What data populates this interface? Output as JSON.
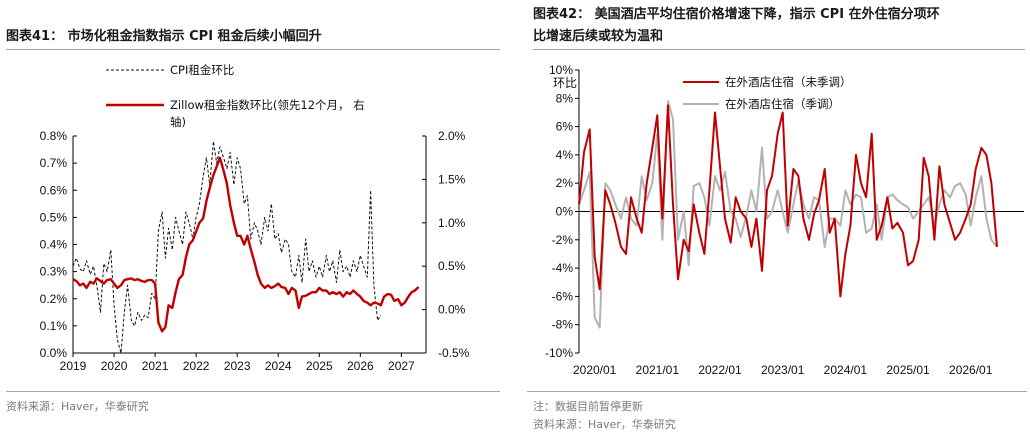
{
  "left": {
    "title": "图表41： 市场化租金指数指示 CPI 租金后续小幅回升",
    "source": "资料来源：Haver，华泰研究",
    "chart_data": {
      "type": "line",
      "x_ticks": [
        "2019",
        "2020",
        "2021",
        "2022",
        "2023",
        "2024",
        "2025",
        "2026",
        "2027"
      ],
      "x_range": [
        2019.0,
        2027.6
      ],
      "y_left": {
        "range": [
          0.0,
          0.8
        ],
        "ticks": [
          0.0,
          0.1,
          0.2,
          0.3,
          0.4,
          0.5,
          0.6,
          0.7,
          0.8
        ],
        "tick_labels": [
          "0.0%",
          "0.1%",
          "0.2%",
          "0.3%",
          "0.4%",
          "0.5%",
          "0.6%",
          "0.7%",
          "0.8%"
        ]
      },
      "y_right": {
        "range": [
          -0.5,
          2.0
        ],
        "ticks": [
          -0.5,
          0.0,
          0.5,
          1.0,
          1.5,
          2.0
        ],
        "tick_labels": [
          "-0.5%",
          "0.0%",
          "0.5%",
          "1.0%",
          "1.5%",
          "2.0%"
        ]
      },
      "grid": false,
      "legend_position": "top-left",
      "series": [
        {
          "name": "CPI租金环比",
          "axis": "left",
          "style": "dashed",
          "color": "#111111",
          "x": [
            2019.0,
            2019.08,
            2019.17,
            2019.25,
            2019.33,
            2019.42,
            2019.5,
            2019.58,
            2019.67,
            2019.75,
            2019.83,
            2019.92,
            2020.0,
            2020.08,
            2020.17,
            2020.25,
            2020.33,
            2020.42,
            2020.5,
            2020.58,
            2020.67,
            2020.75,
            2020.83,
            2020.92,
            2021.0,
            2021.08,
            2021.17,
            2021.25,
            2021.33,
            2021.42,
            2021.5,
            2021.58,
            2021.67,
            2021.75,
            2021.83,
            2021.92,
            2022.0,
            2022.08,
            2022.17,
            2022.25,
            2022.33,
            2022.42,
            2022.5,
            2022.58,
            2022.67,
            2022.75,
            2022.83,
            2022.92,
            2023.0,
            2023.08,
            2023.17,
            2023.25,
            2023.33,
            2023.42,
            2023.5,
            2023.58,
            2023.67,
            2023.75,
            2023.83,
            2023.92,
            2024.0,
            2024.08,
            2024.17,
            2024.25,
            2024.33,
            2024.42,
            2024.5,
            2024.58,
            2024.67,
            2024.75,
            2024.83,
            2024.92,
            2025.0,
            2025.08,
            2025.17,
            2025.25,
            2025.33,
            2025.42,
            2025.5,
            2025.58,
            2025.67,
            2025.75,
            2025.83,
            2025.92,
            2026.0,
            2026.08,
            2026.17,
            2026.25,
            2026.33,
            2026.42,
            2026.5
          ],
          "values": [
            0.32,
            0.35,
            0.31,
            0.3,
            0.34,
            0.29,
            0.32,
            0.25,
            0.15,
            0.33,
            0.3,
            0.38,
            0.18,
            0.05,
            0.0,
            0.15,
            0.25,
            0.12,
            0.1,
            0.15,
            0.12,
            0.14,
            0.13,
            0.22,
            0.2,
            0.45,
            0.52,
            0.35,
            0.46,
            0.38,
            0.5,
            0.45,
            0.4,
            0.52,
            0.48,
            0.42,
            0.5,
            0.55,
            0.65,
            0.72,
            0.62,
            0.78,
            0.7,
            0.76,
            0.72,
            0.68,
            0.74,
            0.62,
            0.72,
            0.68,
            0.55,
            0.58,
            0.42,
            0.48,
            0.45,
            0.4,
            0.5,
            0.45,
            0.55,
            0.42,
            0.44,
            0.37,
            0.42,
            0.4,
            0.3,
            0.28,
            0.36,
            0.26,
            0.42,
            0.3,
            0.34,
            0.28,
            0.32,
            0.28,
            0.36,
            0.3,
            0.34,
            0.26,
            0.38,
            0.3,
            0.32,
            0.28,
            0.34,
            0.3,
            0.36,
            0.32,
            0.28,
            0.6,
            0.25,
            0.12,
            0.14
          ]
        },
        {
          "name": "Zillow租金指数环比(领先12个月，右轴)",
          "axis": "right",
          "style": "solid",
          "color": "#c00000",
          "x": [
            2019.0,
            2019.08,
            2019.17,
            2019.25,
            2019.33,
            2019.42,
            2019.5,
            2019.58,
            2019.67,
            2019.75,
            2019.83,
            2019.92,
            2020.0,
            2020.08,
            2020.17,
            2020.25,
            2020.33,
            2020.42,
            2020.5,
            2020.58,
            2020.67,
            2020.75,
            2020.83,
            2020.92,
            2021.0,
            2021.08,
            2021.17,
            2021.25,
            2021.33,
            2021.42,
            2021.5,
            2021.58,
            2021.67,
            2021.75,
            2021.83,
            2021.92,
            2022.0,
            2022.08,
            2022.17,
            2022.25,
            2022.33,
            2022.42,
            2022.5,
            2022.58,
            2022.67,
            2022.75,
            2022.83,
            2022.92,
            2023.0,
            2023.08,
            2023.17,
            2023.25,
            2023.33,
            2023.42,
            2023.5,
            2023.58,
            2023.67,
            2023.75,
            2023.83,
            2023.92,
            2024.0,
            2024.08,
            2024.17,
            2024.25,
            2024.33,
            2024.42,
            2024.5,
            2024.58,
            2024.67,
            2024.75,
            2024.83,
            2024.92,
            2025.0,
            2025.08,
            2025.17,
            2025.25,
            2025.33,
            2025.42,
            2025.5,
            2025.58,
            2025.67,
            2025.75,
            2025.83,
            2025.92,
            2026.0,
            2026.08,
            2026.17,
            2026.25,
            2026.33,
            2026.42,
            2026.5,
            2026.58,
            2026.67,
            2026.75,
            2026.83,
            2026.92,
            2027.0,
            2027.08,
            2027.17,
            2027.25,
            2027.33,
            2027.42
          ],
          "values": [
            0.35,
            0.33,
            0.28,
            0.3,
            0.25,
            0.32,
            0.3,
            0.36,
            0.33,
            0.3,
            0.34,
            0.35,
            0.3,
            0.25,
            0.28,
            0.34,
            0.35,
            0.36,
            0.34,
            0.35,
            0.33,
            0.32,
            0.34,
            0.34,
            0.3,
            -0.15,
            -0.25,
            -0.2,
            0.05,
            0.02,
            0.2,
            0.35,
            0.4,
            0.6,
            0.75,
            0.8,
            0.9,
            1.0,
            1.05,
            1.25,
            1.4,
            1.55,
            1.65,
            1.75,
            1.6,
            1.45,
            1.2,
            1.0,
            0.85,
            0.85,
            0.75,
            0.85,
            0.7,
            0.55,
            0.4,
            0.3,
            0.25,
            0.28,
            0.25,
            0.27,
            0.3,
            0.26,
            0.25,
            0.18,
            0.25,
            0.22,
            0.02,
            0.15,
            0.16,
            0.18,
            0.2,
            0.2,
            0.25,
            0.22,
            0.22,
            0.18,
            0.2,
            0.18,
            0.2,
            0.15,
            0.2,
            0.18,
            0.22,
            0.18,
            0.15,
            0.1,
            0.08,
            0.05,
            0.08,
            0.07,
            0.05,
            0.15,
            0.18,
            0.17,
            0.1,
            0.12,
            0.05,
            0.08,
            0.15,
            0.2,
            0.22,
            0.26
          ]
        }
      ]
    }
  },
  "right": {
    "title_line1": "图表42： 美国酒店平均住宿价格增速下降，指示 CPI 在外住宿分项环",
    "title_line2": "比增速后续或较为温和",
    "note": "注：数据目前暂停更新",
    "source": "资料来源：Haver，华泰研究",
    "chart_data": {
      "type": "line",
      "ylabel": "环比",
      "x_ticks": [
        "2020/01",
        "2021/01",
        "2022/01",
        "2023/01",
        "2024/01",
        "2025/01",
        "2026/01"
      ],
      "x_range": [
        2019.75,
        2026.85
      ],
      "y_range": [
        -10,
        10
      ],
      "y_ticks": [
        -10,
        -8,
        -6,
        -4,
        -2,
        0,
        2,
        4,
        6,
        8,
        10
      ],
      "y_tick_labels": [
        "-10%",
        "-8%",
        "-6%",
        "-4%",
        "-2%",
        "0%",
        "2%",
        "4%",
        "6%",
        "8%",
        "10%"
      ],
      "grid": false,
      "legend_position": "top-left",
      "series": [
        {
          "name": "在外酒店住宿（未季调）",
          "color": "#c00000",
          "x": [
            2019.75,
            2019.83,
            2019.92,
            2020.0,
            2020.08,
            2020.17,
            2020.25,
            2020.33,
            2020.42,
            2020.5,
            2020.58,
            2020.67,
            2020.75,
            2020.83,
            2020.92,
            2021.0,
            2021.08,
            2021.17,
            2021.25,
            2021.33,
            2021.42,
            2021.5,
            2021.58,
            2021.67,
            2021.75,
            2021.83,
            2021.92,
            2022.0,
            2022.08,
            2022.17,
            2022.25,
            2022.33,
            2022.42,
            2022.5,
            2022.58,
            2022.67,
            2022.75,
            2022.83,
            2022.92,
            2023.0,
            2023.08,
            2023.17,
            2023.25,
            2023.33,
            2023.42,
            2023.5,
            2023.58,
            2023.67,
            2023.75,
            2023.83,
            2023.92,
            2024.0,
            2024.08,
            2024.17,
            2024.25,
            2024.33,
            2024.42,
            2024.5,
            2024.58,
            2024.67,
            2024.75,
            2024.83,
            2024.92,
            2025.0,
            2025.08,
            2025.17,
            2025.25,
            2025.33,
            2025.42,
            2025.5,
            2025.58,
            2025.67,
            2025.75,
            2025.83,
            2025.92,
            2026.0,
            2026.08,
            2026.17,
            2026.25,
            2026.33,
            2026.42
          ],
          "values": [
            0.5,
            4.2,
            5.8,
            -3.2,
            -5.5,
            1.5,
            0.5,
            -0.8,
            -2.5,
            -3.0,
            1.0,
            -0.5,
            -1.5,
            2.0,
            4.5,
            6.8,
            -0.5,
            7.5,
            0.5,
            -4.8,
            -2.0,
            -2.8,
            0.5,
            -1.5,
            -3.0,
            1.5,
            7.0,
            3.2,
            -0.5,
            -2.2,
            1.0,
            0.0,
            -0.5,
            -2.5,
            -0.5,
            -4.2,
            1.5,
            2.5,
            5.5,
            7.0,
            -1.0,
            3.0,
            2.5,
            -0.5,
            -2.0,
            -0.2,
            0.8,
            3.0,
            -1.5,
            -0.5,
            -6.0,
            -3.0,
            -1.0,
            4.0,
            2.0,
            1.0,
            5.5,
            -2.0,
            -1.0,
            1.0,
            -1.2,
            -0.8,
            -1.5,
            -3.8,
            -3.5,
            -2.0,
            3.8,
            2.5,
            -2.0,
            3.2,
            0.5,
            -0.8,
            -2.0,
            -1.5,
            -0.5,
            0.5,
            3.0,
            4.5,
            4.0,
            2.0,
            -2.5
          ]
        },
        {
          "name": "在外酒店住宿（季调）",
          "color": "#b3b3b3",
          "x": [
            2019.75,
            2019.83,
            2019.92,
            2020.0,
            2020.08,
            2020.17,
            2020.25,
            2020.33,
            2020.42,
            2020.5,
            2020.58,
            2020.67,
            2020.75,
            2020.83,
            2020.92,
            2021.0,
            2021.08,
            2021.17,
            2021.25,
            2021.33,
            2021.42,
            2021.5,
            2021.58,
            2021.67,
            2021.75,
            2021.83,
            2021.92,
            2022.0,
            2022.08,
            2022.17,
            2022.25,
            2022.33,
            2022.42,
            2022.5,
            2022.58,
            2022.67,
            2022.75,
            2022.83,
            2022.92,
            2023.0,
            2023.08,
            2023.17,
            2023.25,
            2023.33,
            2023.42,
            2023.5,
            2023.58,
            2023.67,
            2023.75,
            2023.83,
            2023.92,
            2024.0,
            2024.08,
            2024.17,
            2024.25,
            2024.33,
            2024.42,
            2024.5,
            2024.58,
            2024.67,
            2024.75,
            2024.83,
            2024.92,
            2025.0,
            2025.08,
            2025.17,
            2025.25,
            2025.33,
            2025.42,
            2025.5,
            2025.58,
            2025.67,
            2025.75,
            2025.83,
            2025.92,
            2026.0,
            2026.08,
            2026.17,
            2026.25,
            2026.33,
            2026.42
          ],
          "values": [
            0.5,
            1.5,
            2.8,
            -7.5,
            -8.2,
            2.0,
            1.5,
            0.5,
            -0.5,
            1.0,
            -0.5,
            -1.0,
            2.5,
            0.8,
            2.0,
            5.5,
            -2.0,
            7.8,
            6.5,
            -2.0,
            0.0,
            -3.8,
            1.8,
            2.0,
            1.0,
            -1.0,
            2.5,
            1.5,
            2.8,
            0.0,
            -0.5,
            -1.8,
            -0.3,
            1.5,
            0.0,
            4.5,
            -0.5,
            0.0,
            1.5,
            0.0,
            -1.5,
            0.5,
            2.2,
            0.5,
            -0.5,
            1.0,
            0.8,
            -2.5,
            -0.5,
            -0.5,
            -1.0,
            1.5,
            0.5,
            1.2,
            1.0,
            -1.5,
            -1.2,
            0.5,
            -2.0,
            1.0,
            1.2,
            0.8,
            0.5,
            0.3,
            -0.5,
            0.0,
            0.5,
            1.0,
            -1.0,
            0.5,
            1.5,
            1.0,
            1.8,
            2.0,
            1.2,
            -1.0,
            1.0,
            2.5,
            -0.5,
            -2.0,
            -2.5
          ]
        }
      ]
    }
  }
}
